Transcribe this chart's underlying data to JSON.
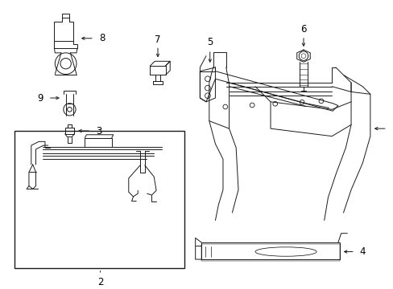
{
  "bg_color": "#ffffff",
  "line_color": "#1a1a1a",
  "figsize": [
    4.89,
    3.6
  ],
  "dpi": 100
}
